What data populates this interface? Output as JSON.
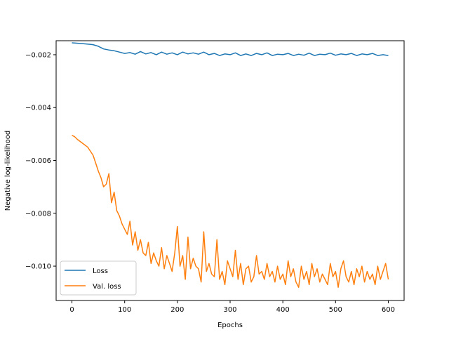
{
  "chart_data": {
    "type": "line",
    "title": "",
    "xlabel": "Epochs",
    "ylabel": "Negative log-likelihood",
    "xlim": [
      -30,
      630
    ],
    "ylim": [
      -0.0113,
      -0.00147
    ],
    "x_ticks": [
      0,
      100,
      200,
      300,
      400,
      500,
      600
    ],
    "x_tick_labels": [
      "0",
      "100",
      "200",
      "300",
      "400",
      "500",
      "600"
    ],
    "y_ticks": [
      -0.002,
      -0.004,
      -0.006,
      -0.008,
      -0.01
    ],
    "y_tick_labels": [
      "−0.002",
      "−0.004",
      "−0.006",
      "−0.008",
      "−0.010"
    ],
    "grid": false,
    "legend_position": "lower-left",
    "series": [
      {
        "name": "Loss",
        "color": "#1f77b4",
        "x": [
          0,
          20,
          40,
          50,
          60,
          70,
          80,
          90,
          100,
          110,
          120,
          130,
          140,
          150,
          160,
          170,
          180,
          190,
          200,
          210,
          220,
          230,
          240,
          250,
          260,
          270,
          280,
          290,
          300,
          310,
          320,
          330,
          340,
          350,
          360,
          370,
          380,
          390,
          400,
          410,
          420,
          430,
          440,
          450,
          460,
          470,
          480,
          490,
          500,
          510,
          520,
          530,
          540,
          550,
          560,
          570,
          580,
          590,
          600
        ],
        "y": [
          -0.00155,
          -0.00158,
          -0.00162,
          -0.00168,
          -0.00178,
          -0.00182,
          -0.00185,
          -0.0019,
          -0.00195,
          -0.00192,
          -0.00198,
          -0.00188,
          -0.00197,
          -0.00192,
          -0.002,
          -0.0019,
          -0.00198,
          -0.00193,
          -0.002,
          -0.0019,
          -0.00197,
          -0.00193,
          -0.00198,
          -0.0019,
          -0.002,
          -0.00195,
          -0.00203,
          -0.00197,
          -0.002,
          -0.00193,
          -0.00203,
          -0.00197,
          -0.00203,
          -0.00195,
          -0.002,
          -0.00193,
          -0.00203,
          -0.00198,
          -0.002,
          -0.00195,
          -0.00203,
          -0.00198,
          -0.00202,
          -0.00194,
          -0.00203,
          -0.00198,
          -0.002,
          -0.00194,
          -0.00202,
          -0.00197,
          -0.002,
          -0.00195,
          -0.00203,
          -0.00197,
          -0.002,
          -0.00195,
          -0.00203,
          -0.002,
          -0.00203
        ]
      },
      {
        "name": "Val. loss",
        "color": "#ff7f0e",
        "x": [
          0,
          5,
          10,
          20,
          30,
          40,
          45,
          50,
          55,
          60,
          65,
          70,
          75,
          80,
          85,
          90,
          95,
          100,
          105,
          110,
          115,
          120,
          125,
          130,
          135,
          140,
          145,
          150,
          155,
          160,
          165,
          170,
          175,
          180,
          185,
          190,
          195,
          200,
          205,
          210,
          215,
          220,
          225,
          230,
          235,
          240,
          245,
          250,
          255,
          260,
          265,
          270,
          275,
          280,
          285,
          290,
          295,
          300,
          305,
          310,
          315,
          320,
          325,
          330,
          335,
          340,
          345,
          350,
          355,
          360,
          365,
          370,
          375,
          380,
          385,
          390,
          395,
          400,
          405,
          410,
          415,
          420,
          425,
          430,
          435,
          440,
          445,
          450,
          455,
          460,
          465,
          470,
          475,
          480,
          485,
          490,
          495,
          500,
          505,
          510,
          515,
          520,
          525,
          530,
          535,
          540,
          545,
          550,
          555,
          560,
          565,
          570,
          575,
          580,
          585,
          590,
          595,
          600
        ],
        "y": [
          -0.00505,
          -0.0051,
          -0.0052,
          -0.00535,
          -0.0055,
          -0.0058,
          -0.0061,
          -0.0064,
          -0.00665,
          -0.007,
          -0.0069,
          -0.0065,
          -0.0076,
          -0.0072,
          -0.0079,
          -0.0081,
          -0.0084,
          -0.0086,
          -0.0088,
          -0.0083,
          -0.0092,
          -0.0087,
          -0.0094,
          -0.009,
          -0.0095,
          -0.0096,
          -0.0091,
          -0.0099,
          -0.0095,
          -0.0098,
          -0.01,
          -0.0093,
          -0.0101,
          -0.0096,
          -0.0099,
          -0.0102,
          -0.0095,
          -0.0085,
          -0.01,
          -0.0096,
          -0.0105,
          -0.0089,
          -0.0101,
          -0.0097,
          -0.01,
          -0.0101,
          -0.0106,
          -0.0087,
          -0.0102,
          -0.0099,
          -0.0103,
          -0.0104,
          -0.009,
          -0.0105,
          -0.0102,
          -0.0107,
          -0.0098,
          -0.0101,
          -0.0104,
          -0.0094,
          -0.0105,
          -0.0099,
          -0.0107,
          -0.0101,
          -0.01,
          -0.0106,
          -0.0104,
          -0.0096,
          -0.0103,
          -0.0102,
          -0.0105,
          -0.0099,
          -0.0104,
          -0.0102,
          -0.0106,
          -0.01,
          -0.0105,
          -0.0103,
          -0.0107,
          -0.0098,
          -0.0104,
          -0.0101,
          -0.0106,
          -0.0108,
          -0.01,
          -0.0105,
          -0.0102,
          -0.0107,
          -0.0099,
          -0.0104,
          -0.0101,
          -0.0106,
          -0.0103,
          -0.0105,
          -0.0107,
          -0.0099,
          -0.0104,
          -0.0102,
          -0.0108,
          -0.0101,
          -0.0098,
          -0.0104,
          -0.0106,
          -0.0102,
          -0.0107,
          -0.0101,
          -0.0104,
          -0.01,
          -0.0106,
          -0.0102,
          -0.0105,
          -0.0103,
          -0.0107,
          -0.01,
          -0.0105,
          -0.0102,
          -0.0099,
          -0.0105
        ]
      }
    ]
  }
}
